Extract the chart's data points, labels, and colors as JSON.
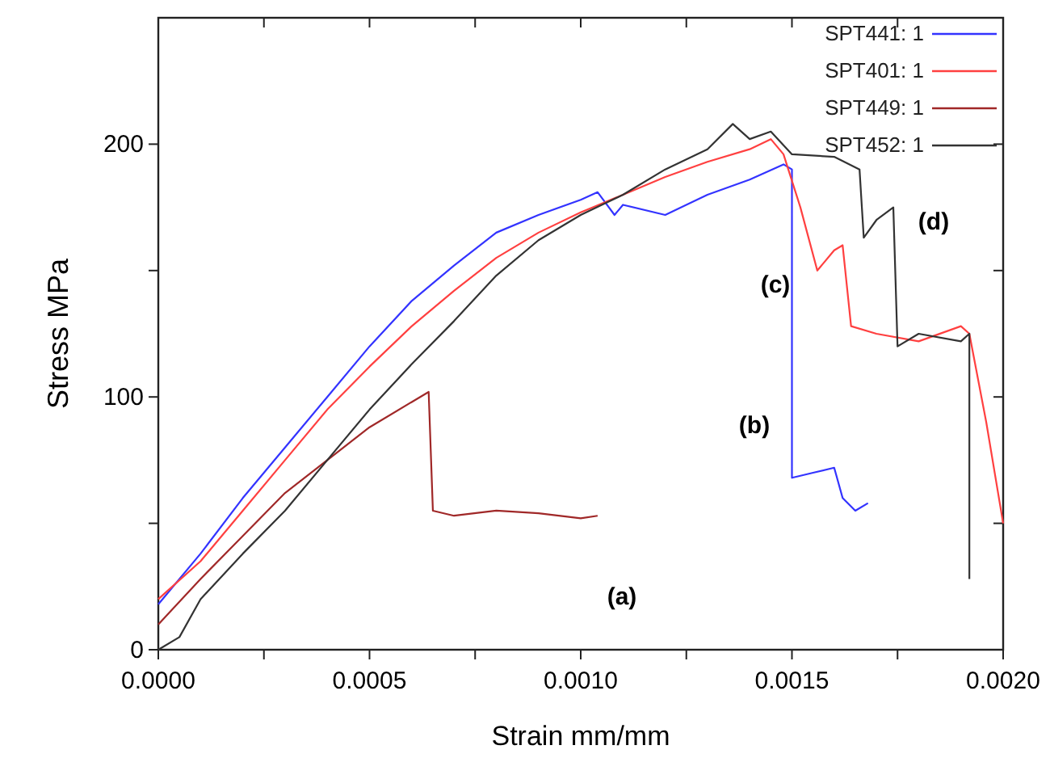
{
  "chart_data": {
    "type": "line",
    "xlabel": "Strain mm/mm",
    "ylabel": "Stress MPa",
    "xlim": [
      0,
      0.002
    ],
    "ylim": [
      0,
      250
    ],
    "xticks": [
      {
        "value": 0,
        "label": "0.0000"
      },
      {
        "value": 0.00025,
        "label": null
      },
      {
        "value": 0.0005,
        "label": "0.0005"
      },
      {
        "value": 0.00075,
        "label": null
      },
      {
        "value": 0.001,
        "label": "0.0010"
      },
      {
        "value": 0.00125,
        "label": null
      },
      {
        "value": 0.0015,
        "label": "0.0015"
      },
      {
        "value": 0.00175,
        "label": null
      },
      {
        "value": 0.002,
        "label": "0.0020"
      }
    ],
    "yticks": [
      0,
      {
        "value": 50,
        "label": null
      },
      100,
      {
        "value": 150,
        "label": null
      },
      200
    ],
    "grid": false,
    "legend": "top right",
    "line_style": "solid",
    "annotations": [
      "(a)",
      "(b)",
      "(c)",
      "(d)"
    ],
    "series": [
      {
        "name": "SPT441: 1",
        "color": "#3333ff",
        "x": [
          0,
          0.0001,
          0.0002,
          0.0003,
          0.0004,
          0.0005,
          0.0006,
          0.0007,
          0.0008,
          0.0009,
          0.001,
          0.00104,
          0.00108,
          0.0011,
          0.0012,
          0.0013,
          0.0014,
          0.00148,
          0.0015,
          0.0015,
          0.00155,
          0.0016,
          0.00162,
          0.00165,
          0.00168
        ],
        "values": [
          18,
          38,
          60,
          80,
          100,
          120,
          138,
          152,
          165,
          172,
          178,
          181,
          172,
          176,
          172,
          180,
          186,
          192,
          190,
          68,
          70,
          72,
          60,
          55,
          58
        ]
      },
      {
        "name": "SPT401: 1",
        "color": "#ff4040",
        "x": [
          0,
          0.0001,
          0.0002,
          0.0003,
          0.0004,
          0.0005,
          0.0006,
          0.0007,
          0.0008,
          0.0009,
          0.001,
          0.0011,
          0.0012,
          0.0013,
          0.0014,
          0.00145,
          0.00148,
          0.00152,
          0.00156,
          0.0016,
          0.00162,
          0.00164,
          0.0017,
          0.0018,
          0.0019,
          0.00192,
          0.00196,
          0.002
        ],
        "values": [
          20,
          35,
          55,
          75,
          95,
          112,
          128,
          142,
          155,
          165,
          173,
          180,
          187,
          193,
          198,
          202,
          196,
          175,
          150,
          158,
          160,
          128,
          125,
          122,
          128,
          125,
          90,
          50
        ]
      },
      {
        "name": "SPT449: 1",
        "color": "#a02828",
        "x": [
          0,
          0.0001,
          0.0002,
          0.0003,
          0.0004,
          0.0005,
          0.0006,
          0.00064,
          0.00065,
          0.0007,
          0.0008,
          0.0009,
          0.001,
          0.00104
        ],
        "values": [
          10,
          28,
          45,
          62,
          75,
          88,
          98,
          102,
          55,
          53,
          55,
          54,
          52,
          53
        ]
      },
      {
        "name": "SPT452: 1",
        "color": "#333333",
        "x": [
          0,
          5e-05,
          0.0001,
          0.0002,
          0.0003,
          0.0004,
          0.0005,
          0.0006,
          0.0007,
          0.0008,
          0.0009,
          0.001,
          0.0011,
          0.0012,
          0.0013,
          0.00136,
          0.0014,
          0.00145,
          0.0015,
          0.0016,
          0.00166,
          0.00167,
          0.0017,
          0.00174,
          0.00175,
          0.0018,
          0.0019,
          0.00192,
          0.00192
        ],
        "values": [
          0,
          5,
          20,
          38,
          55,
          75,
          95,
          113,
          130,
          148,
          162,
          172,
          180,
          190,
          198,
          208,
          202,
          205,
          196,
          195,
          190,
          163,
          170,
          175,
          120,
          125,
          122,
          125,
          28
        ]
      }
    ]
  }
}
